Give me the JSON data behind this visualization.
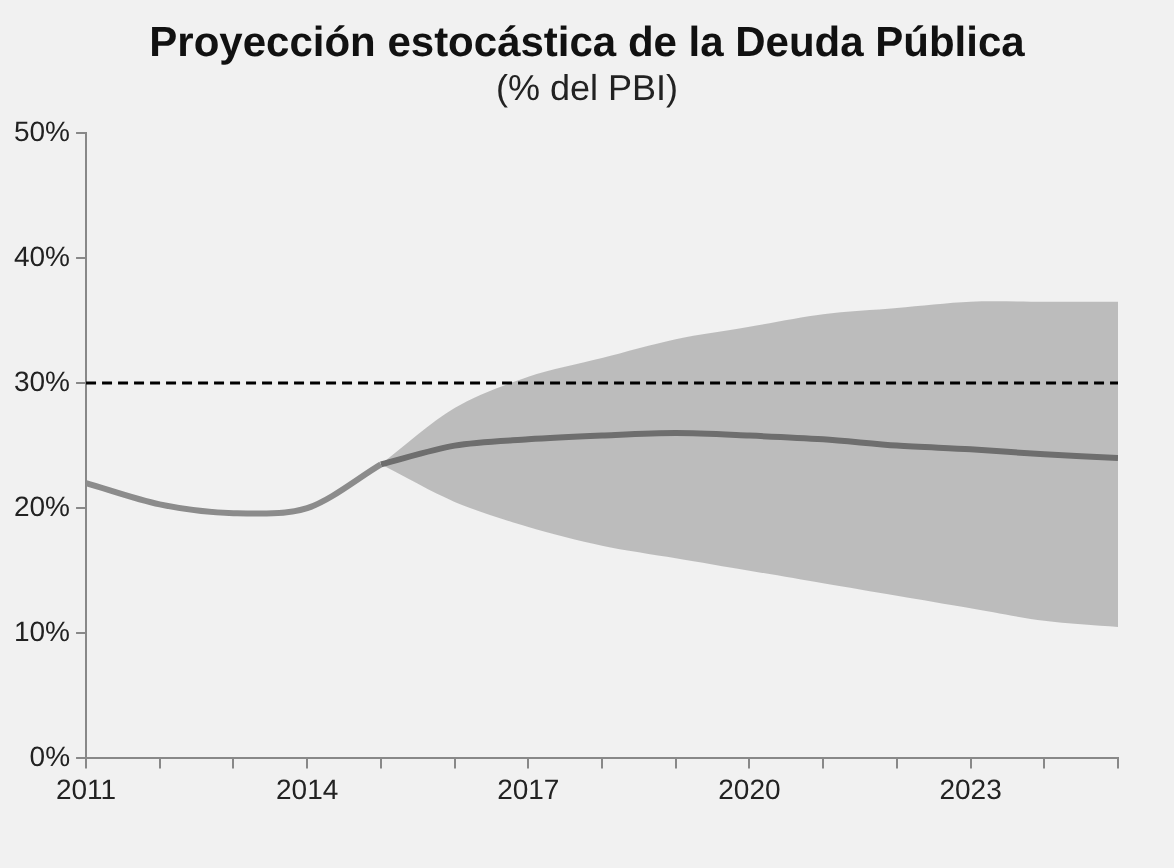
{
  "chart_data": {
    "type": "line",
    "title": "Proyección estocástica de la Deuda Pública",
    "subtitle": "(% del PBI)",
    "series": [
      {
        "color": "#8c8c8c",
        "x": [
          2011,
          2012,
          2013,
          2014,
          2015
        ],
        "values": [
          22,
          20.3,
          19.6,
          20,
          23.5
        ]
      },
      {
        "color": "#6e6e6e",
        "x": [
          2015,
          2016,
          2017,
          2018,
          2019,
          2020,
          2021,
          2022,
          2023,
          2024,
          2025
        ],
        "values": [
          23.5,
          25,
          25.5,
          25.8,
          26,
          25.8,
          25.5,
          25,
          24.7,
          24.3,
          24
        ],
        "lower": [
          23.5,
          20.5,
          18.5,
          17,
          16,
          15,
          14,
          13,
          12,
          11,
          10.5
        ],
        "upper": [
          23.5,
          28,
          30.5,
          32,
          33.5,
          34.5,
          35.5,
          36,
          36.5,
          36.5,
          36.5
        ]
      }
    ],
    "xlim": [
      2011,
      2025
    ],
    "xticks": [
      2011,
      {
        "value": 2012,
        "label": null
      },
      {
        "value": 2013,
        "label": null
      },
      2014,
      {
        "value": 2015,
        "label": null
      },
      {
        "value": 2016,
        "label": null
      },
      2017,
      {
        "value": 2018,
        "label": null
      },
      {
        "value": 2019,
        "label": null
      },
      2020,
      {
        "value": 2021,
        "label": null
      },
      {
        "value": 2022,
        "label": null
      },
      2023,
      {
        "value": 2024,
        "label": null
      },
      {
        "value": 2025,
        "label": null
      }
    ],
    "ylim": [
      0,
      50
    ],
    "yticks": [
      {
        "value": 0,
        "label": "0%"
      },
      {
        "value": 10,
        "label": "10%"
      },
      {
        "value": 20,
        "label": "20%"
      },
      {
        "value": 30,
        "label": "30%"
      },
      {
        "value": 40,
        "label": "40%"
      },
      {
        "value": 50,
        "label": "50%"
      }
    ],
    "ref_lines": [
      {
        "axis": "y",
        "value": 30,
        "color": "#000000",
        "line_style": "dashed"
      }
    ],
    "grid": false,
    "legend": false,
    "marker": "none"
  }
}
